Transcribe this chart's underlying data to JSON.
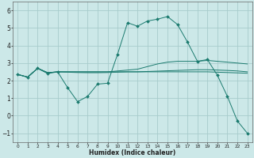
{
  "title": "",
  "xlabel": "Humidex (Indice chaleur)",
  "ylabel": "",
  "line_color": "#1a7a6e",
  "bg_color": "#cce8e8",
  "grid_color": "#a8cccc",
  "xlim": [
    -0.5,
    23.5
  ],
  "ylim": [
    -1.5,
    6.5
  ],
  "yticks": [
    -1,
    0,
    1,
    2,
    3,
    4,
    5,
    6
  ],
  "xticks": [
    0,
    1,
    2,
    3,
    4,
    5,
    6,
    7,
    8,
    9,
    10,
    11,
    12,
    13,
    14,
    15,
    16,
    17,
    18,
    19,
    20,
    21,
    22,
    23
  ],
  "lines": [
    {
      "x": [
        0,
        1,
        2,
        3,
        4,
        5,
        6,
        7,
        8,
        9,
        10,
        11,
        12,
        13,
        14,
        15,
        16,
        17,
        18,
        19,
        20,
        21,
        22,
        23
      ],
      "y": [
        2.35,
        2.2,
        2.7,
        2.4,
        2.5,
        1.6,
        0.8,
        1.1,
        1.8,
        1.85,
        3.5,
        5.3,
        5.1,
        5.4,
        5.5,
        5.65,
        5.2,
        4.2,
        3.1,
        3.2,
        2.3,
        1.1,
        -0.3,
        -1.0
      ],
      "marker": "D",
      "marker_size": 2.0
    },
    {
      "x": [
        0,
        1,
        2,
        3,
        4,
        5,
        6,
        7,
        8,
        9,
        10,
        11,
        12,
        13,
        14,
        15,
        16,
        17,
        18,
        19,
        20,
        21,
        22,
        23
      ],
      "y": [
        2.35,
        2.2,
        2.7,
        2.45,
        2.5,
        2.5,
        2.5,
        2.5,
        2.5,
        2.5,
        2.55,
        2.6,
        2.65,
        2.8,
        2.95,
        3.05,
        3.1,
        3.1,
        3.1,
        3.15,
        3.1,
        3.05,
        3.0,
        2.95
      ],
      "marker": null,
      "marker_size": 0
    },
    {
      "x": [
        0,
        1,
        2,
        3,
        4,
        5,
        6,
        7,
        8,
        9,
        10,
        11,
        12,
        13,
        14,
        15,
        16,
        17,
        18,
        19,
        20,
        21,
        22,
        23
      ],
      "y": [
        2.35,
        2.2,
        2.7,
        2.45,
        2.5,
        2.5,
        2.5,
        2.5,
        2.5,
        2.5,
        2.5,
        2.5,
        2.5,
        2.52,
        2.54,
        2.56,
        2.58,
        2.6,
        2.62,
        2.62,
        2.6,
        2.58,
        2.55,
        2.5
      ],
      "marker": null,
      "marker_size": 0
    },
    {
      "x": [
        0,
        1,
        2,
        3,
        4,
        5,
        6,
        7,
        8,
        9,
        10,
        11,
        12,
        13,
        14,
        15,
        16,
        17,
        18,
        19,
        20,
        21,
        22,
        23
      ],
      "y": [
        2.35,
        2.2,
        2.7,
        2.45,
        2.5,
        2.48,
        2.46,
        2.45,
        2.45,
        2.46,
        2.48,
        2.5,
        2.5,
        2.5,
        2.5,
        2.5,
        2.5,
        2.5,
        2.5,
        2.5,
        2.48,
        2.46,
        2.44,
        2.42
      ],
      "marker": null,
      "marker_size": 0
    }
  ]
}
